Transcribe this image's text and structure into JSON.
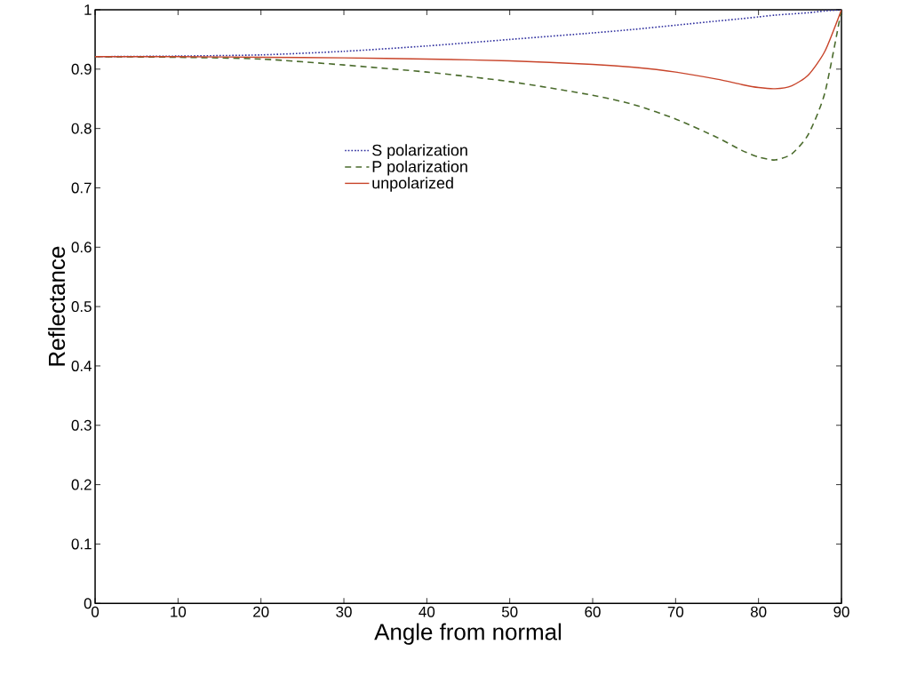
{
  "chart_data": {
    "type": "line",
    "xlabel": "Angle from normal",
    "ylabel": "Reflectance",
    "xlim": [
      0,
      90
    ],
    "ylim": [
      0,
      1
    ],
    "xticks": [
      0,
      10,
      20,
      30,
      40,
      50,
      60,
      70,
      80,
      90
    ],
    "yticks": [
      0,
      0.1,
      0.2,
      0.3,
      0.4,
      0.5,
      0.6,
      0.7,
      0.8,
      0.9,
      1
    ],
    "x": [
      0,
      10,
      20,
      30,
      40,
      50,
      60,
      65,
      70,
      75,
      78,
      80,
      82,
      84,
      86,
      88,
      90
    ],
    "legend": "top",
    "grid": false,
    "marker": "none",
    "series": [
      {
        "name": "S polarization",
        "color": "#2e2e9e",
        "line_style": "dotted",
        "values": [
          0.921,
          0.922,
          0.924,
          0.93,
          0.939,
          0.95,
          0.961,
          0.967,
          0.974,
          0.981,
          0.985,
          0.988,
          0.991,
          0.993,
          0.995,
          0.998,
          1
        ]
      },
      {
        "name": "P polarization",
        "color": "#4a6b2c",
        "line_style": "dashed",
        "values": [
          0.921,
          0.92,
          0.917,
          0.907,
          0.895,
          0.879,
          0.856,
          0.84,
          0.816,
          0.785,
          0.763,
          0.752,
          0.747,
          0.757,
          0.79,
          0.86,
          1
        ]
      },
      {
        "name": "unpolarized",
        "color": "#c8442a",
        "line_style": "solid",
        "values": [
          0.921,
          0.921,
          0.92,
          0.919,
          0.917,
          0.914,
          0.908,
          0.903,
          0.895,
          0.883,
          0.874,
          0.869,
          0.867,
          0.872,
          0.89,
          0.93,
          1
        ]
      }
    ]
  }
}
